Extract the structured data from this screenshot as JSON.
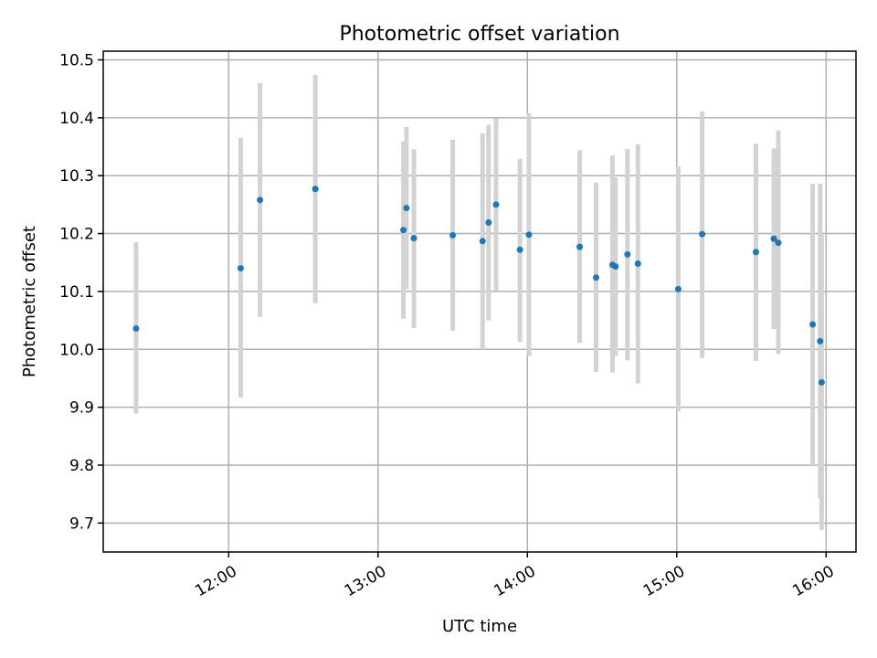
{
  "chart_data": {
    "type": "scatter",
    "title": "Photometric offset variation",
    "xlabel": "UTC time",
    "ylabel": "Photometric offset",
    "x_unit": "hours (UTC)",
    "xlim": [
      11.16,
      16.2
    ],
    "ylim": [
      9.65,
      10.515
    ],
    "x_ticks": [
      {
        "value": 12,
        "label": "12:00"
      },
      {
        "value": 13,
        "label": "13:00"
      },
      {
        "value": 14,
        "label": "14:00"
      },
      {
        "value": 15,
        "label": "15:00"
      },
      {
        "value": 16,
        "label": "16:00"
      }
    ],
    "y_ticks": [
      {
        "value": 9.7,
        "label": "9.7"
      },
      {
        "value": 9.8,
        "label": "9.8"
      },
      {
        "value": 9.9,
        "label": "9.9"
      },
      {
        "value": 10.0,
        "label": "10.0"
      },
      {
        "value": 10.1,
        "label": "10.1"
      },
      {
        "value": 10.2,
        "label": "10.2"
      },
      {
        "value": 10.3,
        "label": "10.3"
      },
      {
        "value": 10.4,
        "label": "10.4"
      },
      {
        "value": 10.5,
        "label": "10.5"
      }
    ],
    "grid": true,
    "marker_color": "#1f77b4",
    "errorbar_color": "#d3d3d3",
    "points": [
      {
        "x": 11.38,
        "y": 10.036,
        "low": 9.889,
        "high": 10.185
      },
      {
        "x": 12.08,
        "y": 10.14,
        "low": 9.917,
        "high": 10.365
      },
      {
        "x": 12.21,
        "y": 10.258,
        "low": 10.056,
        "high": 10.46
      },
      {
        "x": 12.58,
        "y": 10.277,
        "low": 10.08,
        "high": 10.474
      },
      {
        "x": 13.17,
        "y": 10.206,
        "low": 10.053,
        "high": 10.359
      },
      {
        "x": 13.19,
        "y": 10.244,
        "low": 10.104,
        "high": 10.384
      },
      {
        "x": 13.24,
        "y": 10.192,
        "low": 10.037,
        "high": 10.346
      },
      {
        "x": 13.5,
        "y": 10.197,
        "low": 10.032,
        "high": 10.362
      },
      {
        "x": 13.7,
        "y": 10.187,
        "low": 10.0,
        "high": 10.373
      },
      {
        "x": 13.74,
        "y": 10.219,
        "low": 10.05,
        "high": 10.388
      },
      {
        "x": 13.79,
        "y": 10.25,
        "low": 10.101,
        "high": 10.399
      },
      {
        "x": 13.95,
        "y": 10.172,
        "low": 10.013,
        "high": 10.329
      },
      {
        "x": 14.01,
        "y": 10.198,
        "low": 9.989,
        "high": 10.408
      },
      {
        "x": 14.35,
        "y": 10.177,
        "low": 10.011,
        "high": 10.344
      },
      {
        "x": 14.46,
        "y": 10.124,
        "low": 9.961,
        "high": 10.288
      },
      {
        "x": 14.57,
        "y": 10.146,
        "low": 9.96,
        "high": 10.335
      },
      {
        "x": 14.59,
        "y": 10.143,
        "low": 9.989,
        "high": 10.297
      },
      {
        "x": 14.67,
        "y": 10.164,
        "low": 9.981,
        "high": 10.346
      },
      {
        "x": 14.74,
        "y": 10.148,
        "low": 9.941,
        "high": 10.354
      },
      {
        "x": 15.01,
        "y": 10.104,
        "low": 9.893,
        "high": 10.316
      },
      {
        "x": 15.17,
        "y": 10.199,
        "low": 9.985,
        "high": 10.411
      },
      {
        "x": 15.53,
        "y": 10.168,
        "low": 9.98,
        "high": 10.355
      },
      {
        "x": 15.65,
        "y": 10.191,
        "low": 10.035,
        "high": 10.347
      },
      {
        "x": 15.68,
        "y": 10.184,
        "low": 9.992,
        "high": 10.378
      },
      {
        "x": 15.91,
        "y": 10.043,
        "low": 9.8,
        "high": 10.286
      },
      {
        "x": 15.96,
        "y": 10.014,
        "low": 9.743,
        "high": 10.286
      },
      {
        "x": 15.97,
        "y": 9.943,
        "low": 9.688,
        "high": 10.198
      }
    ]
  }
}
